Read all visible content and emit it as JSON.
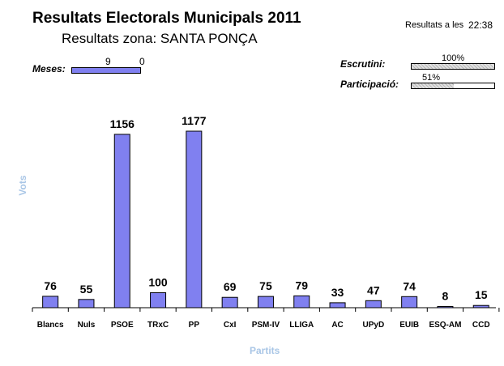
{
  "header": {
    "title": "Resultats Electorals Municipals 2011",
    "subtitle": "Resultats zona: SANTA PONÇA",
    "time_label": "Resultats a les",
    "time_value": "22:38"
  },
  "meses": {
    "label": "Meses:",
    "value_a": "9",
    "value_b": "0"
  },
  "stats": {
    "escrutini": {
      "label": "Escrutini:",
      "percent_text": "100%",
      "percent": 100
    },
    "participacio": {
      "label": "Participació:",
      "percent_text": "51%",
      "percent": 51
    }
  },
  "colors": {
    "bar": "#8080f0",
    "axis_title": "#a9c6e6"
  },
  "chart_data": {
    "type": "bar",
    "title": "Resultats Electorals Municipals 2011",
    "subtitle": "Resultats zona: SANTA PONÇA",
    "xlabel": "Partits",
    "ylabel": "Vots",
    "categories": [
      "Blancs",
      "Nuls",
      "PSOE",
      "TRxC",
      "PP",
      "CxI",
      "PSM-IV",
      "LLIGA",
      "AC",
      "UPyD",
      "EUIB",
      "ESQ-AM",
      "CCD"
    ],
    "values": [
      76,
      55,
      1156,
      100,
      1177,
      69,
      75,
      79,
      33,
      47,
      74,
      8,
      15
    ],
    "ylim": [
      0,
      1177
    ],
    "grid": false,
    "legend": "none"
  }
}
